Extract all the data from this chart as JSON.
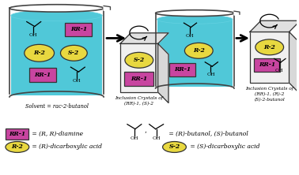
{
  "bg_color": "#ffffff",
  "liquid_color": "#50c8d8",
  "rr1_color": "#c845a0",
  "r2_color": "#e8d840",
  "s2_color": "#e8d840",
  "beaker1_label": "Solvent = rac-2-butanol",
  "crystal1_caption1": "Inclusion Crystals of",
  "crystal1_caption2": "(RR)-1, (S)-2",
  "crystal2_caption1": "Inclusion Crystals of",
  "crystal2_caption2": "(RR)-1, (R)-2",
  "crystal2_caption3": "(S)-2-butanol",
  "legend_rr1_eq": " = (R, R)-diamine",
  "legend_r2_eq": " = (R)-dicarboxylic acid",
  "legend_s2_eq": " = (S)-dicarboxylic acid",
  "legend_but_eq": " = (R)-butanol, (S)-butanol"
}
